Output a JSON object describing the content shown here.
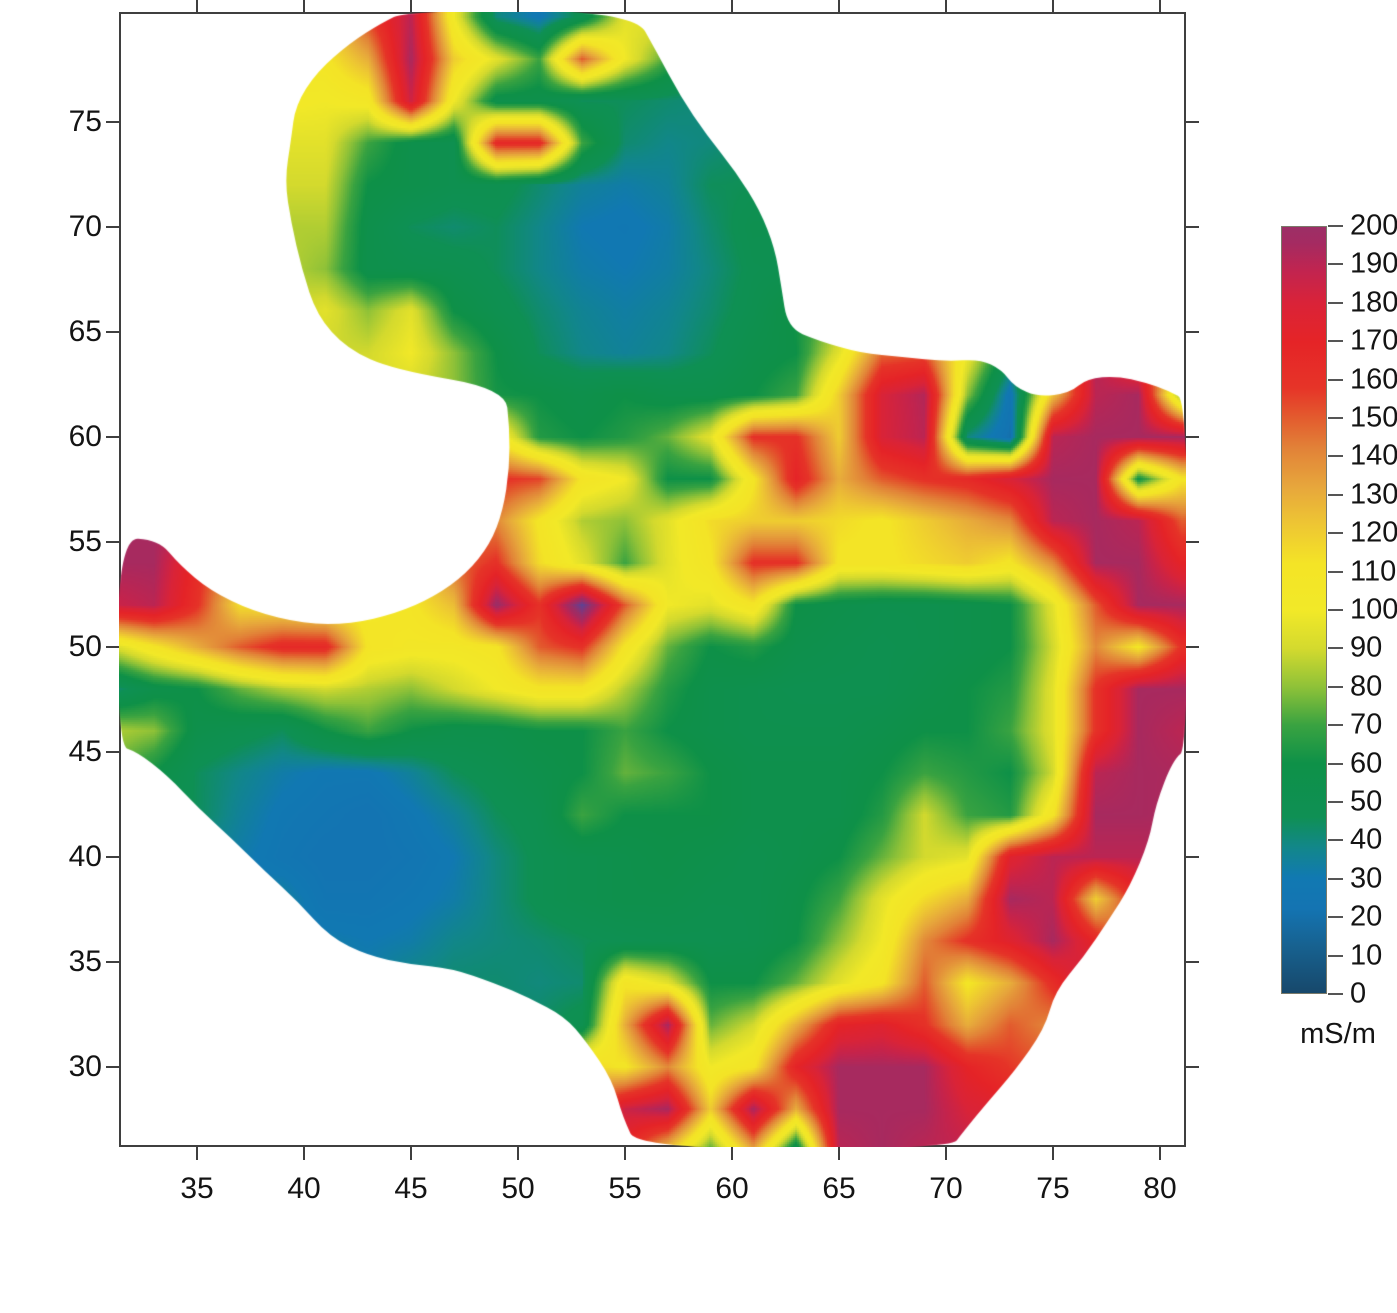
{
  "axes": {
    "x_ticks": [
      "35",
      "40",
      "45",
      "50",
      "55",
      "60",
      "65",
      "70",
      "75",
      "80"
    ],
    "x_tick_values": [
      35,
      40,
      45,
      50,
      55,
      60,
      65,
      70,
      75,
      80
    ],
    "y_ticks": [
      "30",
      "35",
      "40",
      "45",
      "50",
      "55",
      "60",
      "65",
      "70",
      "75"
    ],
    "y_tick_values": [
      30,
      35,
      40,
      45,
      50,
      55,
      60,
      65,
      70,
      75
    ]
  },
  "colorbar": {
    "unit": "mS/m",
    "min": 0,
    "max": 200,
    "tick_values": [
      0,
      10,
      20,
      30,
      40,
      50,
      60,
      70,
      80,
      90,
      100,
      110,
      120,
      130,
      140,
      150,
      160,
      170,
      180,
      190,
      200
    ],
    "tick_labels": [
      "0",
      "10",
      "20",
      "30",
      "40",
      "50",
      "60",
      "70",
      "80",
      "90",
      "100",
      "110",
      "120",
      "130",
      "140",
      "150",
      "160",
      "170",
      "180",
      "190",
      "200"
    ]
  },
  "chart_data": {
    "type": "heatmap",
    "title": "",
    "xlabel": "",
    "ylabel": "",
    "unit": "mS/m",
    "value_range": [
      0,
      200
    ],
    "x_range": [
      31.355,
      81.215
    ],
    "y_range": [
      26.19,
      80.24
    ],
    "grid_x": [
      31,
      33,
      35,
      37,
      39,
      41,
      43,
      45,
      47,
      49,
      51,
      53,
      55,
      57,
      59,
      61,
      63,
      65,
      67,
      69,
      71,
      73,
      75,
      77,
      79,
      81
    ],
    "grid_y": [
      80,
      78,
      76,
      74,
      72,
      70,
      68,
      66,
      64,
      62,
      60,
      58,
      56,
      54,
      52,
      50,
      48,
      46,
      44,
      42,
      40,
      38,
      36,
      34,
      32,
      30,
      28,
      26
    ],
    "values": [
      [
        null,
        null,
        null,
        null,
        null,
        null,
        null,
        190,
        100,
        40,
        28,
        50,
        95,
        null,
        null,
        null,
        null,
        null,
        null,
        null,
        null,
        null,
        null,
        null,
        null,
        null
      ],
      [
        null,
        null,
        null,
        null,
        null,
        110,
        130,
        195,
        120,
        95,
        70,
        150,
        100,
        null,
        null,
        null,
        null,
        null,
        null,
        null,
        null,
        null,
        null,
        null,
        null,
        null
      ],
      [
        null,
        null,
        null,
        null,
        null,
        100,
        105,
        185,
        100,
        55,
        55,
        45,
        45,
        42,
        null,
        null,
        null,
        null,
        null,
        null,
        null,
        null,
        null,
        null,
        null,
        null
      ],
      [
        null,
        null,
        null,
        null,
        null,
        95,
        70,
        55,
        50,
        165,
        165,
        70,
        42,
        38,
        null,
        null,
        null,
        null,
        null,
        null,
        null,
        null,
        null,
        null,
        null,
        null
      ],
      [
        null,
        null,
        null,
        null,
        null,
        90,
        60,
        55,
        50,
        50,
        42,
        35,
        32,
        35,
        45,
        null,
        null,
        null,
        null,
        null,
        null,
        null,
        null,
        null,
        null,
        null
      ],
      [
        null,
        null,
        null,
        null,
        null,
        85,
        55,
        45,
        42,
        45,
        38,
        30,
        28,
        32,
        42,
        50,
        null,
        null,
        null,
        null,
        null,
        null,
        null,
        null,
        null,
        null
      ],
      [
        null,
        null,
        null,
        null,
        null,
        80,
        55,
        52,
        50,
        45,
        38,
        32,
        30,
        33,
        40,
        48,
        null,
        null,
        null,
        null,
        null,
        null,
        null,
        null,
        null,
        null
      ],
      [
        null,
        null,
        null,
        null,
        null,
        95,
        80,
        95,
        60,
        50,
        42,
        36,
        33,
        36,
        42,
        50,
        null,
        null,
        null,
        null,
        null,
        null,
        null,
        null,
        null,
        null
      ],
      [
        null,
        null,
        null,
        null,
        null,
        null,
        90,
        100,
        80,
        60,
        45,
        38,
        35,
        38,
        45,
        55,
        60,
        95,
        null,
        null,
        null,
        null,
        null,
        null,
        null,
        null
      ],
      [
        null,
        null,
        null,
        null,
        null,
        null,
        null,
        null,
        null,
        null,
        60,
        55,
        60,
        55,
        55,
        60,
        70,
        120,
        180,
        192,
        80,
        25,
        null,
        190,
        195,
        75
      ],
      [
        null,
        null,
        null,
        null,
        null,
        null,
        null,
        null,
        null,
        null,
        65,
        60,
        65,
        75,
        95,
        160,
        160,
        120,
        180,
        190,
        40,
        20,
        190,
        195,
        195,
        195
      ],
      [
        null,
        null,
        null,
        null,
        null,
        null,
        null,
        null,
        null,
        160,
        155,
        110,
        100,
        60,
        60,
        110,
        170,
        130,
        150,
        160,
        165,
        180,
        195,
        195,
        60,
        110
      ],
      [
        null,
        null,
        null,
        null,
        null,
        null,
        null,
        null,
        null,
        140,
        110,
        85,
        80,
        95,
        115,
        120,
        120,
        115,
        110,
        120,
        130,
        140,
        190,
        195,
        190,
        150
      ],
      [
        195,
        195,
        null,
        null,
        null,
        null,
        null,
        null,
        null,
        160,
        115,
        95,
        70,
        95,
        110,
        160,
        160,
        110,
        110,
        115,
        120,
        110,
        140,
        195,
        195,
        170
      ],
      [
        185,
        190,
        160,
        115,
        110,
        105,
        105,
        110,
        125,
        200,
        160,
        215,
        150,
        100,
        95,
        110,
        60,
        55,
        52,
        52,
        55,
        60,
        95,
        150,
        195,
        195
      ],
      [
        90,
        110,
        130,
        150,
        165,
        165,
        110,
        105,
        105,
        110,
        150,
        160,
        110,
        75,
        60,
        65,
        55,
        52,
        50,
        52,
        55,
        60,
        90,
        140,
        110,
        160
      ],
      [
        40,
        55,
        60,
        75,
        85,
        90,
        85,
        80,
        90,
        100,
        110,
        110,
        85,
        65,
        55,
        52,
        50,
        50,
        50,
        55,
        60,
        65,
        95,
        160,
        195,
        195
      ],
      [
        85,
        80,
        55,
        50,
        45,
        60,
        70,
        60,
        55,
        55,
        60,
        60,
        70,
        60,
        55,
        52,
        52,
        52,
        55,
        60,
        60,
        70,
        95,
        160,
        195,
        190
      ],
      [
        null,
        60,
        45,
        38,
        32,
        28,
        28,
        35,
        45,
        50,
        55,
        60,
        75,
        70,
        60,
        55,
        55,
        55,
        60,
        70,
        65,
        60,
        90,
        190,
        195,
        null
      ],
      [
        null,
        null,
        45,
        35,
        28,
        25,
        22,
        28,
        35,
        45,
        50,
        70,
        60,
        60,
        60,
        55,
        55,
        55,
        65,
        90,
        70,
        65,
        110,
        195,
        195,
        null
      ],
      [
        null,
        null,
        null,
        32,
        26,
        22,
        22,
        25,
        30,
        40,
        48,
        52,
        55,
        58,
        55,
        52,
        55,
        60,
        75,
        90,
        95,
        175,
        190,
        190,
        190,
        null
      ],
      [
        null,
        null,
        null,
        null,
        35,
        25,
        25,
        28,
        32,
        40,
        48,
        52,
        55,
        55,
        52,
        52,
        58,
        70,
        95,
        115,
        130,
        195,
        190,
        120,
        null,
        null
      ],
      [
        null,
        null,
        null,
        null,
        null,
        32,
        30,
        32,
        38,
        40,
        42,
        45,
        48,
        50,
        50,
        52,
        60,
        80,
        100,
        140,
        160,
        175,
        195,
        null,
        null,
        null
      ],
      [
        null,
        null,
        null,
        null,
        null,
        null,
        null,
        40,
        42,
        42,
        40,
        42,
        110,
        95,
        60,
        60,
        75,
        95,
        110,
        150,
        110,
        130,
        null,
        null,
        null,
        null
      ],
      [
        null,
        null,
        null,
        null,
        null,
        null,
        null,
        null,
        null,
        null,
        null,
        50,
        130,
        195,
        75,
        90,
        130,
        170,
        175,
        160,
        130,
        150,
        null,
        null,
        null,
        null
      ],
      [
        null,
        null,
        null,
        null,
        null,
        null,
        null,
        null,
        null,
        null,
        null,
        null,
        110,
        140,
        100,
        110,
        170,
        195,
        195,
        195,
        170,
        null,
        null,
        null,
        null,
        null
      ],
      [
        null,
        null,
        null,
        null,
        null,
        null,
        null,
        null,
        null,
        null,
        null,
        null,
        185,
        195,
        120,
        195,
        130,
        195,
        195,
        195,
        180,
        null,
        null,
        null,
        null,
        null
      ],
      [
        null,
        null,
        null,
        null,
        null,
        null,
        null,
        null,
        null,
        null,
        null,
        null,
        null,
        120,
        70,
        130,
        45,
        190,
        195,
        190,
        null,
        null,
        null,
        null,
        null,
        null
      ]
    ],
    "boundary": [
      [
        44.8,
        80.3
      ],
      [
        55.4,
        80.3
      ],
      [
        56.5,
        78.3
      ],
      [
        57.6,
        76.2
      ],
      [
        58.8,
        74.4
      ],
      [
        60.2,
        72.6
      ],
      [
        61.3,
        70.8
      ],
      [
        62.0,
        69.0
      ],
      [
        62.3,
        67.2
      ],
      [
        62.6,
        65.2
      ],
      [
        64.0,
        64.6
      ],
      [
        66.0,
        64.0
      ],
      [
        68.0,
        63.8
      ],
      [
        70.0,
        63.6
      ],
      [
        71.6,
        63.7
      ],
      [
        72.6,
        63.2
      ],
      [
        73.2,
        62.4
      ],
      [
        74.3,
        61.9
      ],
      [
        75.8,
        62.1
      ],
      [
        76.6,
        62.8
      ],
      [
        78.0,
        62.9
      ],
      [
        79.3,
        62.6
      ],
      [
        80.4,
        62.2
      ],
      [
        81.3,
        61.7
      ],
      [
        81.3,
        45.2
      ],
      [
        80.6,
        44.6
      ],
      [
        79.8,
        42.5
      ],
      [
        79.5,
        40.8
      ],
      [
        78.6,
        38.6
      ],
      [
        77.6,
        37.0
      ],
      [
        76.4,
        35.2
      ],
      [
        75.1,
        33.6
      ],
      [
        74.6,
        31.8
      ],
      [
        73.2,
        29.8
      ],
      [
        72.0,
        28.4
      ],
      [
        70.8,
        26.9
      ],
      [
        70.2,
        26.1
      ],
      [
        55.6,
        26.1
      ],
      [
        54.9,
        27.6
      ],
      [
        54.4,
        29.4
      ],
      [
        53.2,
        31.2
      ],
      [
        52.2,
        32.4
      ],
      [
        50.5,
        33.3
      ],
      [
        48.9,
        34.0
      ],
      [
        46.9,
        34.7
      ],
      [
        44.9,
        34.9
      ],
      [
        43.0,
        35.3
      ],
      [
        41.2,
        36.2
      ],
      [
        39.7,
        37.9
      ],
      [
        38.2,
        39.3
      ],
      [
        36.6,
        40.9
      ],
      [
        35.1,
        42.3
      ],
      [
        33.6,
        43.9
      ],
      [
        32.2,
        45.0
      ],
      [
        31.3,
        45.3
      ],
      [
        31.3,
        55.2
      ],
      [
        33.2,
        55.1
      ],
      [
        34.2,
        53.9
      ],
      [
        35.6,
        52.7
      ],
      [
        37.6,
        51.7
      ],
      [
        40.0,
        51.1
      ],
      [
        42.2,
        51.1
      ],
      [
        44.3,
        51.6
      ],
      [
        46.1,
        52.4
      ],
      [
        47.6,
        53.5
      ],
      [
        48.7,
        54.9
      ],
      [
        49.3,
        56.5
      ],
      [
        49.6,
        58.5
      ],
      [
        49.6,
        60.5
      ],
      [
        49.4,
        62.3
      ],
      [
        44.2,
        63.2
      ],
      [
        42.0,
        64.2
      ],
      [
        40.6,
        65.8
      ],
      [
        39.9,
        68.0
      ],
      [
        39.4,
        70.2
      ],
      [
        39.1,
        72.2
      ],
      [
        39.4,
        74.2
      ],
      [
        39.6,
        75.8
      ],
      [
        40.6,
        77.4
      ],
      [
        42.2,
        78.8
      ],
      [
        43.6,
        79.7
      ]
    ],
    "colormap_stops": [
      [
        0,
        "#17486b"
      ],
      [
        12,
        "#17618f"
      ],
      [
        22,
        "#1474b2"
      ],
      [
        30,
        "#1179b2"
      ],
      [
        38,
        "#12878a"
      ],
      [
        46,
        "#0f9054"
      ],
      [
        60,
        "#0e9148"
      ],
      [
        70,
        "#3aa341"
      ],
      [
        80,
        "#8fc238"
      ],
      [
        90,
        "#d4da2e"
      ],
      [
        100,
        "#f2e928"
      ],
      [
        112,
        "#f4e426"
      ],
      [
        122,
        "#eec733"
      ],
      [
        132,
        "#e7a73c"
      ],
      [
        142,
        "#e28338"
      ],
      [
        150,
        "#e35c2e"
      ],
      [
        158,
        "#e63428"
      ],
      [
        170,
        "#e52427"
      ],
      [
        180,
        "#da2338"
      ],
      [
        188,
        "#c3244e"
      ],
      [
        196,
        "#a42b62"
      ],
      [
        200,
        "#9c2f66"
      ]
    ],
    "colormap_extension_stops": [
      [
        208,
        "#7c3880"
      ],
      [
        216,
        "#5a4496"
      ],
      [
        224,
        "#4f4e9e"
      ]
    ],
    "legend_position": "right",
    "grid_lines": "off"
  }
}
